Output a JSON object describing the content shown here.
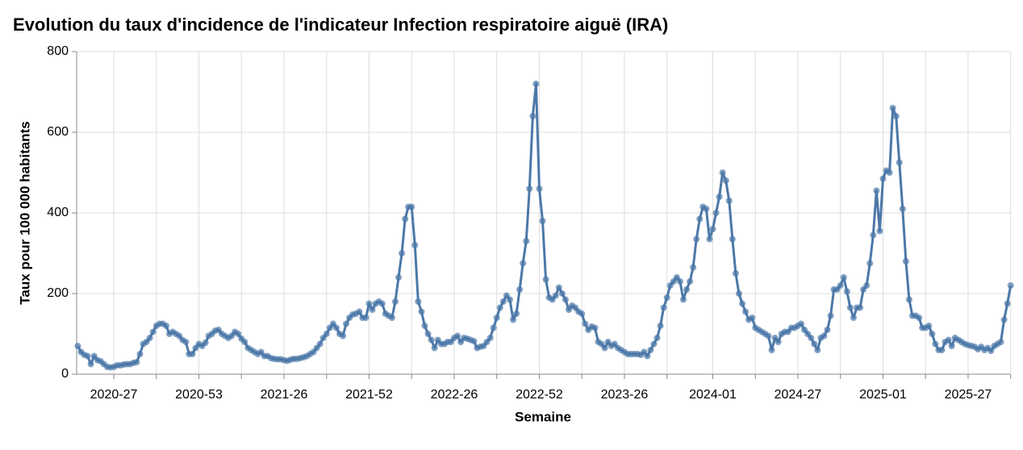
{
  "chart_data": {
    "type": "line",
    "title": "Evolution du taux d'incidence de l'indicateur Infection respiratoire aiguë (IRA)",
    "x_label": "Semaine",
    "y_label": "Taux pour 100 000 habitants",
    "color": "#4c78a8",
    "grid": true,
    "ylim": [
      0,
      800
    ],
    "yticks": [
      0,
      200,
      400,
      600,
      800
    ],
    "categories": [
      null,
      null,
      null,
      null,
      null,
      null,
      null,
      null,
      null,
      null,
      null,
      "2020-27",
      null,
      null,
      null,
      null,
      null,
      null,
      null,
      null,
      null,
      null,
      null,
      null,
      null,
      null,
      null,
      null,
      null,
      null,
      null,
      null,
      null,
      null,
      null,
      null,
      null,
      "2020-53",
      null,
      null,
      null,
      null,
      null,
      null,
      null,
      null,
      null,
      null,
      null,
      null,
      null,
      null,
      null,
      null,
      null,
      null,
      null,
      null,
      null,
      null,
      null,
      null,
      null,
      "2021-26",
      null,
      null,
      null,
      null,
      null,
      null,
      null,
      null,
      null,
      null,
      null,
      null,
      null,
      null,
      null,
      null,
      null,
      null,
      null,
      null,
      null,
      null,
      null,
      null,
      null,
      "2021-52",
      null,
      null,
      null,
      null,
      null,
      null,
      null,
      null,
      null,
      null,
      null,
      null,
      null,
      null,
      null,
      null,
      null,
      null,
      null,
      null,
      null,
      null,
      null,
      null,
      null,
      "2022-26",
      null,
      null,
      null,
      null,
      null,
      null,
      null,
      null,
      null,
      null,
      null,
      null,
      null,
      null,
      null,
      null,
      null,
      null,
      null,
      null,
      null,
      null,
      null,
      null,
      null,
      "2022-52",
      null,
      null,
      null,
      null,
      null,
      null,
      null,
      null,
      null,
      null,
      null,
      null,
      null,
      null,
      null,
      null,
      null,
      null,
      null,
      null,
      null,
      null,
      null,
      null,
      null,
      "2023-26",
      null,
      null,
      null,
      null,
      null,
      null,
      null,
      null,
      null,
      null,
      null,
      null,
      null,
      null,
      null,
      null,
      null,
      null,
      null,
      null,
      null,
      null,
      null,
      null,
      null,
      null,
      "2024-01",
      null,
      null,
      null,
      null,
      null,
      null,
      null,
      null,
      null,
      null,
      null,
      null,
      null,
      null,
      null,
      null,
      null,
      null,
      null,
      null,
      null,
      null,
      null,
      null,
      null,
      "2024-27",
      null,
      null,
      null,
      null,
      null,
      null,
      null,
      null,
      null,
      null,
      null,
      null,
      null,
      null,
      null,
      null,
      null,
      null,
      null,
      null,
      null,
      null,
      null,
      null,
      null,
      "2025-01",
      null,
      null,
      null,
      null,
      null,
      null,
      null,
      null,
      null,
      null,
      null,
      null,
      null,
      null,
      null,
      null,
      null,
      null,
      null,
      null,
      null,
      null,
      null,
      null,
      null,
      "2025-27",
      null,
      null,
      null,
      null,
      null,
      null,
      null,
      null,
      null,
      null,
      null,
      null,
      null
    ],
    "values": [
      70,
      55,
      48,
      45,
      25,
      45,
      35,
      32,
      25,
      18,
      17,
      18,
      22,
      22,
      24,
      25,
      25,
      28,
      30,
      50,
      75,
      80,
      90,
      105,
      120,
      125,
      125,
      120,
      100,
      105,
      100,
      95,
      85,
      80,
      50,
      50,
      65,
      75,
      70,
      78,
      95,
      100,
      108,
      110,
      100,
      95,
      90,
      95,
      105,
      100,
      88,
      80,
      65,
      60,
      55,
      50,
      55,
      45,
      45,
      40,
      38,
      37,
      37,
      35,
      33,
      36,
      38,
      38,
      40,
      42,
      45,
      50,
      55,
      65,
      75,
      90,
      100,
      115,
      125,
      115,
      100,
      95,
      125,
      140,
      148,
      150,
      155,
      140,
      140,
      175,
      160,
      175,
      180,
      175,
      150,
      145,
      140,
      180,
      240,
      300,
      385,
      415,
      415,
      320,
      180,
      155,
      120,
      100,
      85,
      65,
      85,
      75,
      75,
      80,
      80,
      90,
      95,
      80,
      90,
      88,
      85,
      82,
      65,
      68,
      70,
      80,
      90,
      115,
      140,
      165,
      180,
      195,
      185,
      135,
      150,
      210,
      275,
      330,
      460,
      640,
      720,
      460,
      380,
      235,
      190,
      185,
      195,
      215,
      200,
      185,
      160,
      170,
      165,
      155,
      150,
      125,
      110,
      118,
      115,
      80,
      75,
      65,
      80,
      70,
      75,
      65,
      60,
      55,
      50,
      50,
      50,
      50,
      48,
      55,
      45,
      60,
      75,
      90,
      120,
      165,
      190,
      220,
      230,
      240,
      230,
      185,
      210,
      230,
      265,
      335,
      385,
      415,
      410,
      335,
      360,
      400,
      440,
      500,
      480,
      430,
      335,
      250,
      200,
      175,
      155,
      135,
      140,
      115,
      110,
      105,
      100,
      95,
      60,
      90,
      80,
      100,
      105,
      105,
      115,
      115,
      120,
      125,
      110,
      100,
      90,
      75,
      60,
      90,
      95,
      110,
      145,
      210,
      210,
      220,
      240,
      205,
      165,
      140,
      165,
      165,
      210,
      220,
      275,
      345,
      455,
      355,
      485,
      505,
      500,
      660,
      640,
      525,
      410,
      280,
      185,
      145,
      145,
      140,
      115,
      115,
      120,
      100,
      75,
      60,
      60,
      80,
      85,
      70,
      90,
      85,
      80,
      75,
      72,
      70,
      68,
      62,
      68,
      60,
      65,
      58,
      70,
      75,
      80,
      135,
      175,
      220
    ]
  }
}
